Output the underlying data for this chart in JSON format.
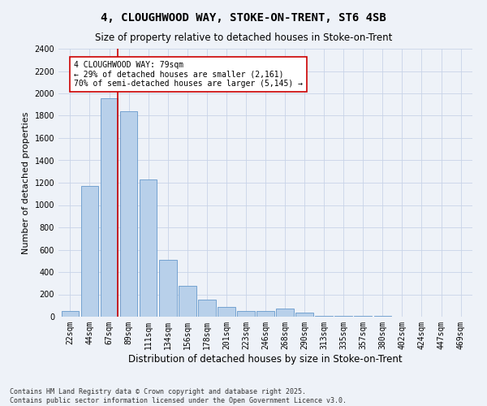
{
  "title_line1": "4, CLOUGHWOOD WAY, STOKE-ON-TRENT, ST6 4SB",
  "title_line2": "Size of property relative to detached houses in Stoke-on-Trent",
  "xlabel": "Distribution of detached houses by size in Stoke-on-Trent",
  "ylabel": "Number of detached properties",
  "categories": [
    "22sqm",
    "44sqm",
    "67sqm",
    "89sqm",
    "111sqm",
    "134sqm",
    "156sqm",
    "178sqm",
    "201sqm",
    "223sqm",
    "246sqm",
    "268sqm",
    "290sqm",
    "313sqm",
    "335sqm",
    "357sqm",
    "380sqm",
    "402sqm",
    "424sqm",
    "447sqm",
    "469sqm"
  ],
  "values": [
    50,
    1170,
    1960,
    1840,
    1230,
    510,
    280,
    155,
    90,
    50,
    50,
    70,
    40,
    10,
    5,
    5,
    5,
    3,
    2,
    2,
    2
  ],
  "bar_color": "#b8d0ea",
  "bar_edge_color": "#6699cc",
  "grid_color": "#c8d4e8",
  "background_color": "#eef2f8",
  "vline_color": "#cc0000",
  "annotation_text": "4 CLOUGHWOOD WAY: 79sqm\n← 29% of detached houses are smaller (2,161)\n70% of semi-detached houses are larger (5,145) →",
  "annotation_box_facecolor": "#ffffff",
  "annotation_box_edge": "#cc0000",
  "ylim": [
    0,
    2400
  ],
  "yticks": [
    0,
    200,
    400,
    600,
    800,
    1000,
    1200,
    1400,
    1600,
    1800,
    2000,
    2200,
    2400
  ],
  "footnote_line1": "Contains HM Land Registry data © Crown copyright and database right 2025.",
  "footnote_line2": "Contains public sector information licensed under the Open Government Licence v3.0.",
  "title_fontsize": 10,
  "subtitle_fontsize": 8.5,
  "axis_label_fontsize": 8,
  "tick_fontsize": 7,
  "annotation_fontsize": 7,
  "footnote_fontsize": 6
}
